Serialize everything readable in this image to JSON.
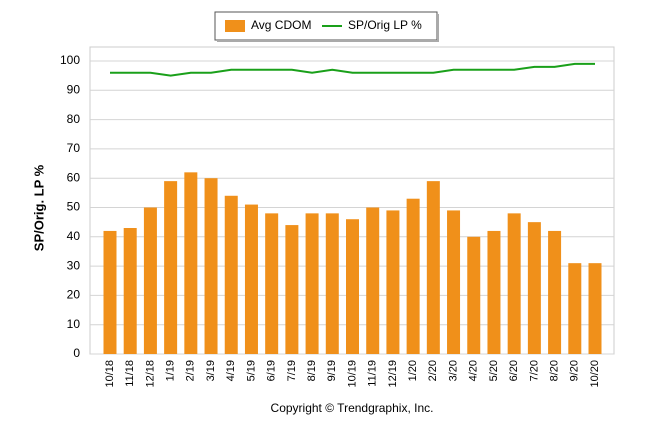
{
  "chart_data": {
    "type": "bar-line",
    "y_label": "SP/Orig. LP %",
    "footer": "Copyright © Trendgraphix, Inc.",
    "categories": [
      "10/18",
      "11/18",
      "12/18",
      "1/19",
      "2/19",
      "3/19",
      "4/19",
      "5/19",
      "6/19",
      "7/19",
      "8/19",
      "9/19",
      "10/19",
      "11/19",
      "12/19",
      "1/20",
      "2/20",
      "3/20",
      "4/20",
      "5/20",
      "6/20",
      "7/20",
      "8/20",
      "9/20",
      "10/20"
    ],
    "series": [
      {
        "name": "Avg CDOM",
        "type": "bar",
        "color": "#f0901a",
        "values": [
          42,
          43,
          50,
          59,
          62,
          60,
          54,
          51,
          48,
          44,
          48,
          48,
          46,
          50,
          49,
          53,
          59,
          49,
          40,
          42,
          48,
          45,
          42,
          31,
          31
        ]
      },
      {
        "name": "SP/Orig LP %",
        "type": "line",
        "color": "#1aa01a",
        "values": [
          96,
          96,
          96,
          95,
          96,
          96,
          97,
          97,
          97,
          97,
          96,
          97,
          96,
          96,
          96,
          96,
          96,
          97,
          97,
          97,
          97,
          98,
          98,
          99,
          99
        ]
      }
    ],
    "ylim": [
      0,
      100
    ],
    "yticks": [
      0,
      10,
      20,
      30,
      40,
      50,
      60,
      70,
      80,
      90,
      100
    ],
    "grid": true
  }
}
